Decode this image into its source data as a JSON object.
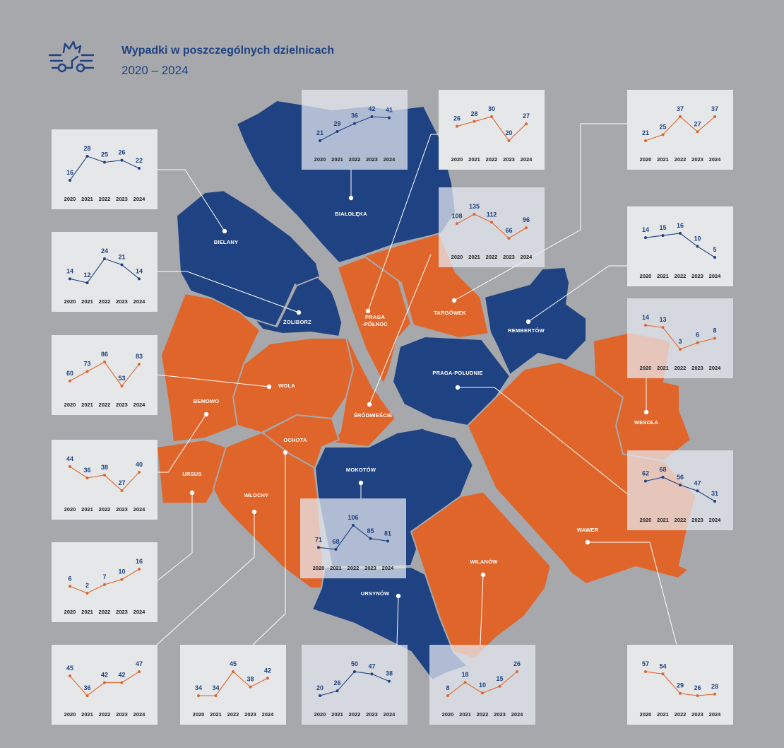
{
  "header": {
    "title": "Wypadki w poszczególnych dzielnicach",
    "subtitle": "2020 – 2024",
    "icon": "car-crash-icon"
  },
  "colors": {
    "increase_district": "#e0652b",
    "decrease_district": "#1f4282",
    "background": "#a7a8ab",
    "river": "#a7a8ab"
  },
  "years": [
    "2020",
    "2021",
    "2022",
    "2023",
    "2024"
  ],
  "chart_data": [
    {
      "id": "bialoleka",
      "district": "BIAŁOŁĘKA",
      "type": "line",
      "x": [
        "2020",
        "2021",
        "2022",
        "2023",
        "2024"
      ],
      "values": [
        21,
        29,
        36,
        42,
        41
      ],
      "color": "#1f4282"
    },
    {
      "id": "praga-polnoc",
      "district": "PRAGA\n-PÓŁNOC",
      "district_lines": [
        "PRAGA",
        "-PÓŁNOC"
      ],
      "type": "line",
      "x": [
        "2020",
        "2021",
        "2022",
        "2023",
        "2024"
      ],
      "values": [
        26,
        28,
        30,
        20,
        27
      ],
      "color": "#e0652b"
    },
    {
      "id": "targowek",
      "district": "TARGÓWEK",
      "type": "line",
      "x": [
        "2020",
        "2021",
        "2022",
        "2023",
        "2024"
      ],
      "values": [
        21,
        25,
        37,
        27,
        37
      ],
      "color": "#e0652b"
    },
    {
      "id": "bielany",
      "district": "BIELANY",
      "type": "line",
      "x": [
        "2020",
        "2021",
        "2022",
        "2023",
        "2024"
      ],
      "values": [
        16,
        28,
        25,
        26,
        22
      ],
      "color": "#1f4282"
    },
    {
      "id": "srodmiescie",
      "district": "ŚRÓDMIEŚCIE",
      "type": "line",
      "x": [
        "2020",
        "2021",
        "2022",
        "2023",
        "2024"
      ],
      "values": [
        108,
        135,
        112,
        66,
        96
      ],
      "color": "#e0652b"
    },
    {
      "id": "rembertow",
      "district": "REMBERTÓW",
      "type": "line",
      "x": [
        "2020",
        "2021",
        "2022",
        "2023",
        "2024"
      ],
      "values": [
        14,
        15,
        16,
        10,
        5
      ],
      "color": "#1f4282"
    },
    {
      "id": "zoliborz",
      "district": "ŻOLIBORZ",
      "type": "line",
      "x": [
        "2020",
        "2021",
        "2022",
        "2023",
        "2024"
      ],
      "values": [
        14,
        12,
        24,
        21,
        14
      ],
      "color": "#1f4282"
    },
    {
      "id": "wesola",
      "district": "WESOŁA",
      "type": "line",
      "x": [
        "2020",
        "2021",
        "2022",
        "2023",
        "2024"
      ],
      "values": [
        14,
        13,
        3,
        6,
        8
      ],
      "color": "#e0652b"
    },
    {
      "id": "wola",
      "district": "WOLA",
      "type": "line",
      "x": [
        "2020",
        "2021",
        "2022",
        "2023",
        "2024"
      ],
      "values": [
        60,
        73,
        86,
        53,
        83
      ],
      "color": "#e0652b"
    },
    {
      "id": "bemowo",
      "district": "BEMOWO",
      "type": "line",
      "x": [
        "2020",
        "2021",
        "2022",
        "2023",
        "2024"
      ],
      "values": [
        44,
        36,
        38,
        27,
        40
      ],
      "color": "#e0652b"
    },
    {
      "id": "praga-poludnie",
      "district": "PRAGA-POŁUDNIE",
      "type": "line",
      "x": [
        "2020",
        "2021",
        "2022",
        "2023",
        "2024"
      ],
      "values": [
        62,
        68,
        56,
        47,
        31
      ],
      "color": "#1f4282"
    },
    {
      "id": "mokotow",
      "district": "MOKOTÓW",
      "type": "line",
      "x": [
        "2020",
        "2021",
        "2022",
        "2023",
        "2024"
      ],
      "values": [
        71,
        68,
        106,
        85,
        81
      ],
      "color": "#1f4282"
    },
    {
      "id": "ursus",
      "district": "URSUS",
      "type": "line",
      "x": [
        "2020",
        "2021",
        "2022",
        "2023",
        "2024"
      ],
      "values": [
        6,
        2,
        7,
        10,
        16
      ],
      "color": "#e0652b"
    },
    {
      "id": "wawer",
      "district": "WAWER",
      "type": "line",
      "x": [
        "2020",
        "2021",
        "2022",
        "2023",
        "2024"
      ],
      "values": [
        57,
        54,
        29,
        26,
        28
      ],
      "color": "#e0652b"
    },
    {
      "id": "wlochy",
      "district": "WŁOCHY",
      "type": "line",
      "x": [
        "2020",
        "2021",
        "2022",
        "2023",
        "2024"
      ],
      "values": [
        45,
        36,
        42,
        42,
        47
      ],
      "color": "#e0652b"
    },
    {
      "id": "ochota",
      "district": "OCHOTA",
      "type": "line",
      "x": [
        "2020",
        "2021",
        "2022",
        "2023",
        "2024"
      ],
      "values": [
        34,
        34,
        45,
        38,
        42
      ],
      "color": "#e0652b"
    },
    {
      "id": "ursynow",
      "district": "URSYNÓW",
      "type": "line",
      "x": [
        "2020",
        "2021",
        "2022",
        "2023",
        "2024"
      ],
      "values": [
        20,
        26,
        50,
        47,
        38
      ],
      "color": "#1f4282"
    },
    {
      "id": "wilanow",
      "district": "WILANÓW",
      "type": "line",
      "x": [
        "2020",
        "2021",
        "2022",
        "2023",
        "2024"
      ],
      "values": [
        8,
        18,
        10,
        15,
        26
      ],
      "color": "#e0652b"
    }
  ]
}
